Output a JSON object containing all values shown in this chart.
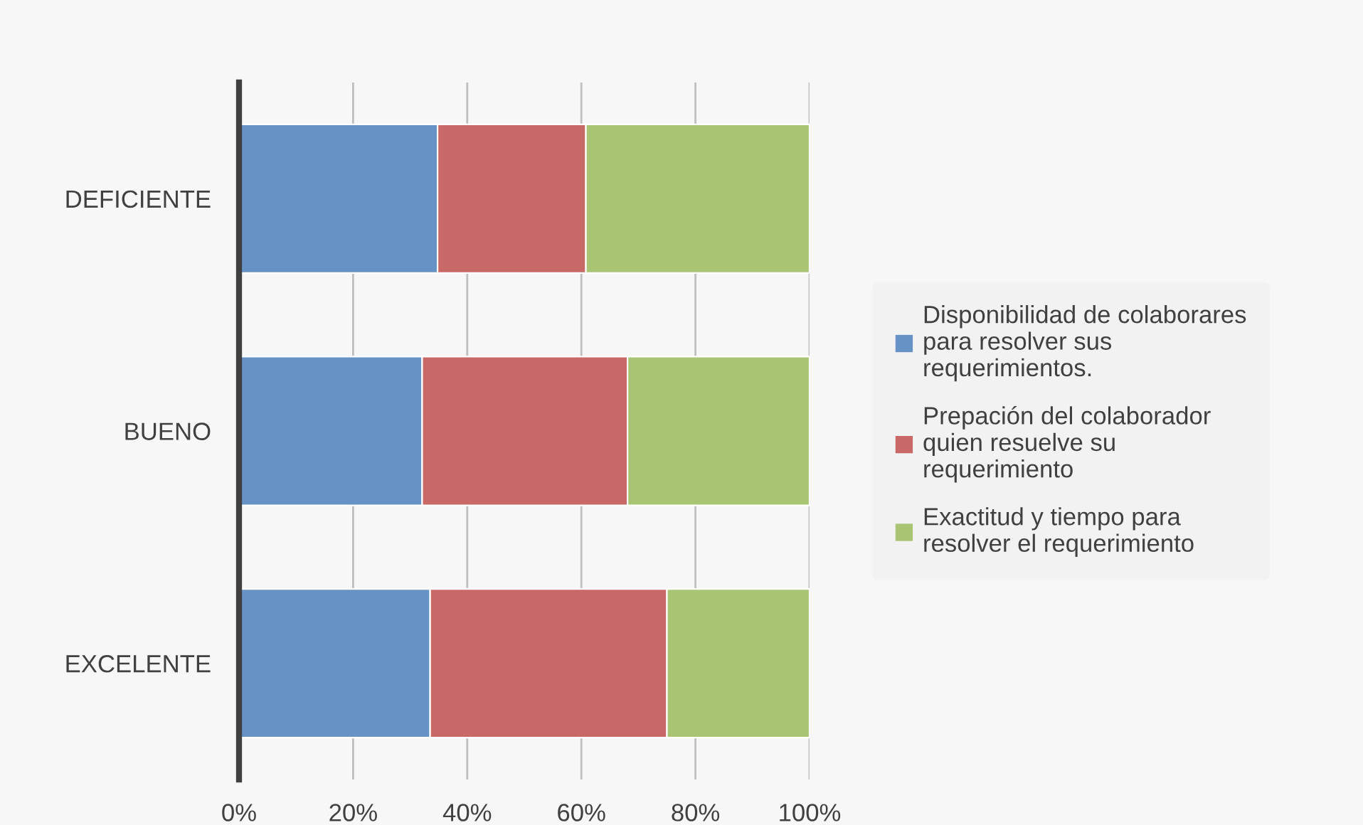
{
  "chart_data": {
    "type": "bar",
    "orientation": "horizontal",
    "stacked": true,
    "categories": [
      "DEFICIENTE",
      "BUENO",
      "EXCELENTE"
    ],
    "series": [
      {
        "name": "Disponibilidad de colaborares para resolver sus requerimientos.",
        "color": "#6792c6",
        "values": [
          34.8,
          32.1,
          33.5
        ]
      },
      {
        "name": "Prepación del colaborador quien resuelve su requerimiento",
        "color": "#c96967",
        "values": [
          26.0,
          36.0,
          41.5
        ]
      },
      {
        "name": "Exactitud y tiempo para resolver el requerimiento",
        "color": "#a9c472",
        "values": [
          39.2,
          31.9,
          25.0
        ]
      }
    ],
    "xlim": [
      0,
      100
    ],
    "xticks": [
      {
        "value": 0,
        "label": "0%"
      },
      {
        "value": 20,
        "label": "20%"
      },
      {
        "value": 40,
        "label": "40%"
      },
      {
        "value": 60,
        "label": "60%"
      },
      {
        "value": 80,
        "label": "80%"
      },
      {
        "value": 100,
        "label": "100%"
      }
    ],
    "grid": "x",
    "legend": "right"
  }
}
